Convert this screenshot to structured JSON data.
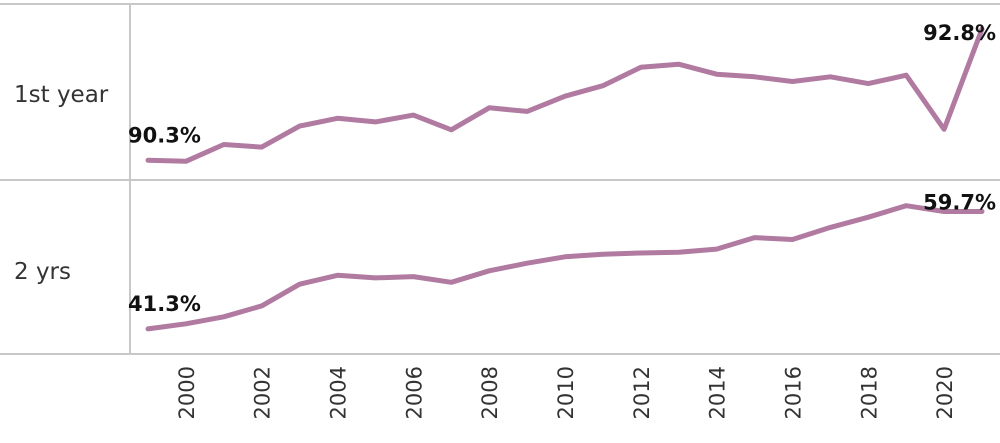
{
  "chart_data": {
    "type": "line",
    "x": [
      1999,
      2000,
      2001,
      2002,
      2003,
      2004,
      2005,
      2006,
      2007,
      2008,
      2009,
      2010,
      2011,
      2012,
      2013,
      2014,
      2015,
      2016,
      2017,
      2018,
      2019,
      2020,
      2021
    ],
    "x_ticks": [
      "2000",
      "2002",
      "2004",
      "2006",
      "2008",
      "2010",
      "2012",
      "2014",
      "2016",
      "2018",
      "2020"
    ],
    "series_color": "#b07aa1",
    "panels": [
      {
        "label": "1st year",
        "ylim": [
          90.0,
          93.2
        ],
        "values": [
          90.3,
          90.28,
          90.6,
          90.55,
          90.95,
          91.1,
          91.03,
          91.16,
          90.88,
          91.3,
          91.23,
          91.52,
          91.72,
          92.07,
          92.13,
          91.94,
          91.89,
          91.8,
          91.89,
          91.76,
          91.92,
          90.89,
          92.8
        ],
        "start_label": "90.3%",
        "end_label": "92.8%"
      },
      {
        "label": "2 yrs",
        "ylim": [
          38.0,
          64.0
        ],
        "values": [
          41.3,
          42.1,
          43.2,
          44.9,
          48.3,
          49.7,
          49.3,
          49.5,
          48.6,
          50.4,
          51.6,
          52.6,
          53.0,
          53.2,
          53.3,
          53.8,
          55.6,
          55.3,
          57.2,
          58.8,
          60.6,
          59.7,
          59.7
        ],
        "start_label": "41.3%",
        "end_label": "59.7%"
      }
    ]
  }
}
